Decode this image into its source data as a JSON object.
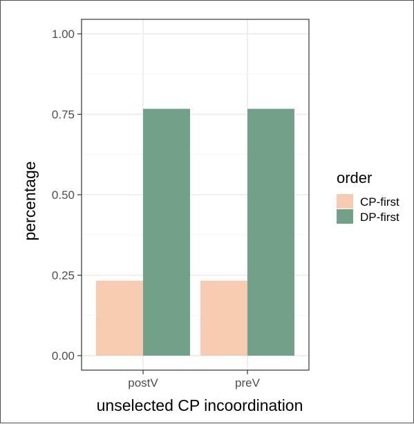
{
  "chart_data": {
    "type": "bar",
    "categories": [
      "postV",
      "preV"
    ],
    "series": [
      {
        "name": "CP-first",
        "values": [
          0.233,
          0.233
        ],
        "color": "#f6cbb1"
      },
      {
        "name": "DP-first",
        "values": [
          0.767,
          0.767
        ],
        "color": "#73a089"
      }
    ],
    "xlabel": "unselected CP incoordination",
    "ylabel": "percentage",
    "ylim": [
      0,
      1
    ],
    "yticks": [
      "0.00",
      "0.25",
      "0.50",
      "0.75",
      "1.00"
    ],
    "ytick_values": [
      0,
      0.25,
      0.5,
      0.75,
      1.0
    ],
    "legend": {
      "title": "order",
      "position": "right"
    },
    "grid": true,
    "colors": {
      "panel_border": "#333333",
      "grid_major": "#ebebeb",
      "grid_minor": "#f5f5f5"
    }
  }
}
